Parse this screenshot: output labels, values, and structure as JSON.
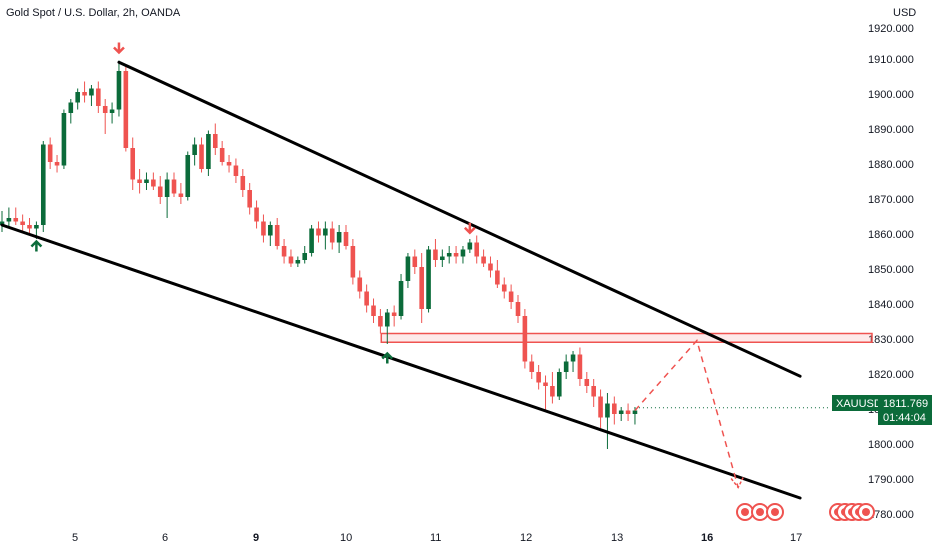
{
  "title": "Gold Spot / U.S. Dollar, 2h, OANDA",
  "currency": "USD",
  "colors": {
    "up": "#26a69a",
    "up_dark": "#0b6b3a",
    "down": "#ef5350",
    "line": "#000000",
    "zone": "#ef5350",
    "label_bg": "#0b6b3a"
  },
  "chart_data": {
    "type": "candlestick",
    "title": "Gold Spot / U.S. Dollar, 2h, OANDA",
    "ylabel": "USD",
    "ylim": [
      1775,
      1922
    ],
    "y_ticks": [
      "1920.000",
      "1910.000",
      "1900.000",
      "1890.000",
      "1880.000",
      "1870.000",
      "1860.000",
      "1850.000",
      "1840.000",
      "1830.000",
      "1820.000",
      "1810.000",
      "1800.000",
      "1790.000",
      "1780.000"
    ],
    "x_ticks": [
      "5",
      "6",
      "9",
      "10",
      "11",
      "12",
      "13",
      "16",
      "17"
    ],
    "x_ticks_bold": [
      "9",
      "16"
    ],
    "candles": [
      [
        1864,
        1868,
        1862,
        1865
      ],
      [
        1865,
        1869,
        1863,
        1866
      ],
      [
        1866,
        1869,
        1864,
        1865
      ],
      [
        1865,
        1867,
        1862,
        1864
      ],
      [
        1864,
        1866,
        1861,
        1863
      ],
      [
        1863,
        1865,
        1860,
        1864
      ],
      [
        1864,
        1888,
        1862,
        1887
      ],
      [
        1887,
        1889,
        1880,
        1882
      ],
      [
        1882,
        1884,
        1879,
        1881
      ],
      [
        1881,
        1897,
        1880,
        1896
      ],
      [
        1896,
        1900,
        1893,
        1899
      ],
      [
        1899,
        1903,
        1897,
        1902
      ],
      [
        1902,
        1905,
        1899,
        1901
      ],
      [
        1901,
        1904,
        1898,
        1903
      ],
      [
        1903,
        1905,
        1896,
        1898
      ],
      [
        1898,
        1900,
        1890,
        1896
      ],
      [
        1896,
        1899,
        1893,
        1897
      ],
      [
        1897,
        1911,
        1895,
        1908
      ],
      [
        1908,
        1910,
        1885,
        1886
      ],
      [
        1886,
        1889,
        1874,
        1877
      ],
      [
        1877,
        1880,
        1873,
        1876
      ],
      [
        1876,
        1879,
        1874,
        1877
      ],
      [
        1877,
        1879,
        1874,
        1875
      ],
      [
        1875,
        1878,
        1870,
        1872
      ],
      [
        1872,
        1879,
        1866,
        1877
      ],
      [
        1877,
        1879,
        1872,
        1873
      ],
      [
        1873,
        1876,
        1870,
        1872
      ],
      [
        1872,
        1885,
        1871,
        1884
      ],
      [
        1884,
        1889,
        1881,
        1887
      ],
      [
        1887,
        1889,
        1879,
        1880
      ],
      [
        1880,
        1891,
        1878,
        1890
      ],
      [
        1890,
        1893,
        1884,
        1886
      ],
      [
        1886,
        1888,
        1881,
        1882
      ],
      [
        1882,
        1884,
        1879,
        1881
      ],
      [
        1881,
        1883,
        1876,
        1878
      ],
      [
        1878,
        1880,
        1872,
        1874
      ],
      [
        1874,
        1876,
        1867,
        1869
      ],
      [
        1869,
        1871,
        1863,
        1865
      ],
      [
        1865,
        1867,
        1859,
        1861
      ],
      [
        1861,
        1865,
        1858,
        1864
      ],
      [
        1864,
        1866,
        1857,
        1858
      ],
      [
        1858,
        1860,
        1853,
        1855
      ],
      [
        1855,
        1857,
        1852,
        1853
      ],
      [
        1853,
        1855,
        1852,
        1854
      ],
      [
        1854,
        1858,
        1853,
        1856
      ],
      [
        1856,
        1864,
        1855,
        1863
      ],
      [
        1863,
        1865,
        1859,
        1861
      ],
      [
        1861,
        1865,
        1857,
        1863
      ],
      [
        1863,
        1865,
        1857,
        1859
      ],
      [
        1859,
        1864,
        1856,
        1862
      ],
      [
        1862,
        1864,
        1857,
        1858
      ],
      [
        1858,
        1860,
        1847,
        1849
      ],
      [
        1849,
        1851,
        1843,
        1845
      ],
      [
        1845,
        1847,
        1839,
        1841
      ],
      [
        1841,
        1843,
        1836,
        1838
      ],
      [
        1838,
        1840,
        1833,
        1835
      ],
      [
        1835,
        1840,
        1830,
        1839
      ],
      [
        1839,
        1841,
        1835,
        1838
      ],
      [
        1838,
        1850,
        1837,
        1848
      ],
      [
        1848,
        1856,
        1846,
        1855
      ],
      [
        1855,
        1857,
        1850,
        1852
      ],
      [
        1852,
        1856,
        1836,
        1840
      ],
      [
        1840,
        1858,
        1839,
        1857
      ],
      [
        1857,
        1860,
        1852,
        1854
      ],
      [
        1854,
        1857,
        1852,
        1855
      ],
      [
        1855,
        1858,
        1853,
        1856
      ],
      [
        1856,
        1858,
        1853,
        1855
      ],
      [
        1855,
        1858,
        1853,
        1857
      ],
      [
        1857,
        1860,
        1856,
        1859
      ],
      [
        1859,
        1861,
        1853,
        1855
      ],
      [
        1855,
        1857,
        1852,
        1853
      ],
      [
        1853,
        1855,
        1849,
        1851
      ],
      [
        1851,
        1854,
        1846,
        1847
      ],
      [
        1847,
        1849,
        1843,
        1845
      ],
      [
        1845,
        1847,
        1840,
        1842
      ],
      [
        1842,
        1844,
        1836,
        1838
      ],
      [
        1838,
        1840,
        1823,
        1825
      ],
      [
        1825,
        1827,
        1820,
        1822
      ],
      [
        1822,
        1824,
        1817,
        1819
      ],
      [
        1819,
        1821,
        1811,
        1818
      ],
      [
        1818,
        1822,
        1813,
        1815
      ],
      [
        1815,
        1823,
        1814,
        1822
      ],
      [
        1822,
        1827,
        1820,
        1825
      ],
      [
        1825,
        1828,
        1822,
        1827
      ],
      [
        1827,
        1829,
        1818,
        1820
      ],
      [
        1820,
        1822,
        1816,
        1818
      ],
      [
        1818,
        1820,
        1812,
        1815
      ],
      [
        1815,
        1817,
        1806,
        1809
      ],
      [
        1809,
        1816,
        1800,
        1813
      ],
      [
        1813,
        1815,
        1807,
        1810
      ],
      [
        1810,
        1812,
        1808,
        1811
      ],
      [
        1811,
        1813,
        1808,
        1810
      ],
      [
        1810,
        1812,
        1807,
        1811
      ]
    ],
    "upper_trendline": [
      [
        1910.5,
        17
      ],
      [
        1820.8,
        116
      ]
    ],
    "lower_trendline": [
      [
        1864,
        0
      ],
      [
        1786,
        116
      ]
    ],
    "resistance_zone": {
      "y_top": 1833,
      "y_bottom": 1830.5,
      "x_start": 56,
      "x_end": 116
    },
    "projection_path": [
      [
        1811,
        92
      ],
      [
        1831,
        101
      ],
      [
        1789,
        107
      ]
    ],
    "down_arrows": [
      [
        17,
        1911
      ],
      [
        68,
        1859.5
      ]
    ],
    "up_arrows": [
      [
        5,
        1861
      ],
      [
        56,
        1829
      ]
    ],
    "current_price": {
      "symbol": "XAUUSD",
      "price": "1811.769",
      "countdown": "01:44:04",
      "value": 1811.769
    }
  }
}
